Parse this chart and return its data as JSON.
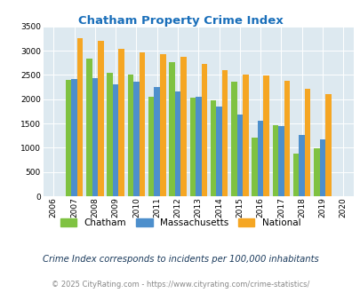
{
  "title": "Chatham Property Crime Index",
  "years": [
    2007,
    2008,
    2009,
    2010,
    2011,
    2012,
    2013,
    2014,
    2015,
    2016,
    2017,
    2018,
    2019
  ],
  "chatham": [
    2390,
    2840,
    2540,
    2510,
    2050,
    2760,
    2030,
    1970,
    2360,
    1210,
    1470,
    880,
    990
  ],
  "massachusetts": [
    2410,
    2430,
    2300,
    2360,
    2250,
    2160,
    2050,
    1840,
    1680,
    1560,
    1450,
    1260,
    1170
  ],
  "national": [
    3260,
    3200,
    3040,
    2960,
    2920,
    2870,
    2730,
    2600,
    2500,
    2490,
    2380,
    2210,
    2110
  ],
  "chatham_color": "#7fc241",
  "massachusetts_color": "#4d8fcc",
  "national_color": "#f5a623",
  "bg_color": "#dde9f0",
  "title_color": "#1a6fba",
  "ylabel_max": 3500,
  "yticks": [
    0,
    500,
    1000,
    1500,
    2000,
    2500,
    3000,
    3500
  ],
  "subtitle": "Crime Index corresponds to incidents per 100,000 inhabitants",
  "footer": "© 2025 CityRating.com - https://www.cityrating.com/crime-statistics/",
  "legend_labels": [
    "Chatham",
    "Massachusetts",
    "National"
  ]
}
